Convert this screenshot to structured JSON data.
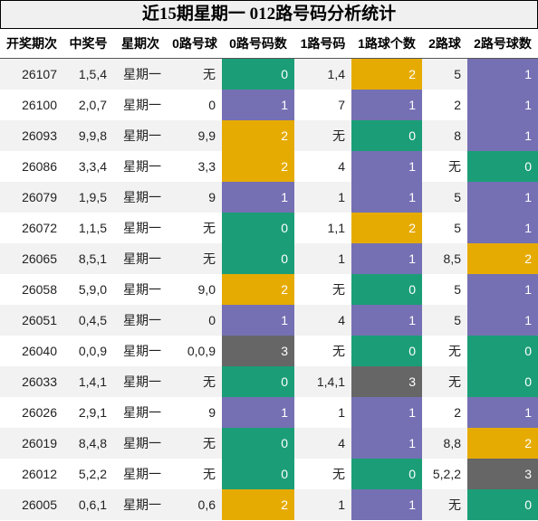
{
  "title": "近15期星期一 012路号码分析统计",
  "table": {
    "headers": [
      "开奖期次",
      "中奖号",
      "星期次",
      "0路号球",
      "0路号码数",
      "1路号码",
      "1路球个数",
      "2路球",
      "2路号球数"
    ],
    "count_columns": [
      4,
      6,
      8
    ],
    "count_colors": {
      "0": "#1b9e77",
      "1": "#7570b3",
      "2": "#e6ab02",
      "3": "#666666"
    },
    "rows": [
      [
        "26107",
        "1,5,4",
        "星期一",
        "无",
        0,
        "1,4",
        2,
        "5",
        1
      ],
      [
        "26100",
        "2,0,7",
        "星期一",
        "0",
        1,
        "7",
        1,
        "2",
        1
      ],
      [
        "26093",
        "9,9,8",
        "星期一",
        "9,9",
        2,
        "无",
        0,
        "8",
        1
      ],
      [
        "26086",
        "3,3,4",
        "星期一",
        "3,3",
        2,
        "4",
        1,
        "无",
        0
      ],
      [
        "26079",
        "1,9,5",
        "星期一",
        "9",
        1,
        "1",
        1,
        "5",
        1
      ],
      [
        "26072",
        "1,1,5",
        "星期一",
        "无",
        0,
        "1,1",
        2,
        "5",
        1
      ],
      [
        "26065",
        "8,5,1",
        "星期一",
        "无",
        0,
        "1",
        1,
        "8,5",
        2
      ],
      [
        "26058",
        "5,9,0",
        "星期一",
        "9,0",
        2,
        "无",
        0,
        "5",
        1
      ],
      [
        "26051",
        "0,4,5",
        "星期一",
        "0",
        1,
        "4",
        1,
        "5",
        1
      ],
      [
        "26040",
        "0,0,9",
        "星期一",
        "0,0,9",
        3,
        "无",
        0,
        "无",
        0
      ],
      [
        "26033",
        "1,4,1",
        "星期一",
        "无",
        0,
        "1,4,1",
        3,
        "无",
        0
      ],
      [
        "26026",
        "2,9,1",
        "星期一",
        "9",
        1,
        "1",
        1,
        "2",
        1
      ],
      [
        "26019",
        "8,4,8",
        "星期一",
        "无",
        0,
        "4",
        1,
        "8,8",
        2
      ],
      [
        "26012",
        "5,2,2",
        "星期一",
        "无",
        0,
        "无",
        0,
        "5,2,2",
        3
      ],
      [
        "26005",
        "0,6,1",
        "星期一",
        "0,6",
        2,
        "1",
        1,
        "无",
        0
      ]
    ]
  }
}
